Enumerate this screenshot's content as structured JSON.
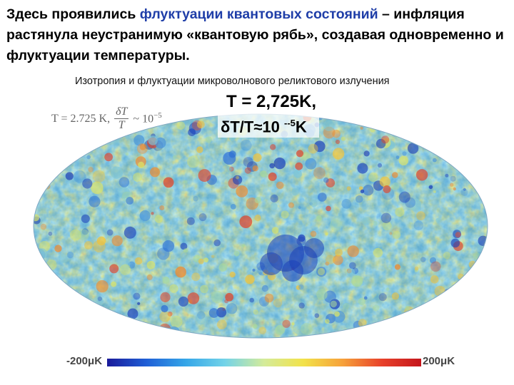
{
  "heading": {
    "part1": "Здесь проявились ",
    "highlight": "флуктуации квантовых состояний",
    "part2": " – инфляция растянула неустранимую «квантовую рябь», создавая одновременно и флуктуации температуры."
  },
  "caption": "Изотропия и флуктуации микроволнового реликтового излучения",
  "formula_faint": {
    "t_part": "T = 2.725 K,",
    "numerator": "δT",
    "denominator": "T",
    "approx": "~ 10",
    "exponent": "−5"
  },
  "overlay": {
    "line1": "T = 2,725K,",
    "line2_prefix": "δT/T≈10 ",
    "line2_exp": "--5",
    "line2_suffix": "K"
  },
  "scale": {
    "min_label": "-200μK",
    "max_label": "200μK",
    "colors": [
      "#1a1a9a",
      "#1f5fd6",
      "#35a6e8",
      "#73d3e8",
      "#d4eb9a",
      "#f2e24a",
      "#f6a13a",
      "#e8412a",
      "#c4161c"
    ]
  },
  "map_colors": {
    "background": "#5aa9cf",
    "cold": [
      "#1c3fb8",
      "#2e6fd4",
      "#4a95da"
    ],
    "neutral": [
      "#7fc6d6",
      "#a8d89c",
      "#d8e36a"
    ],
    "warm": [
      "#f0c23a",
      "#f08a2c",
      "#e0432a"
    ]
  }
}
